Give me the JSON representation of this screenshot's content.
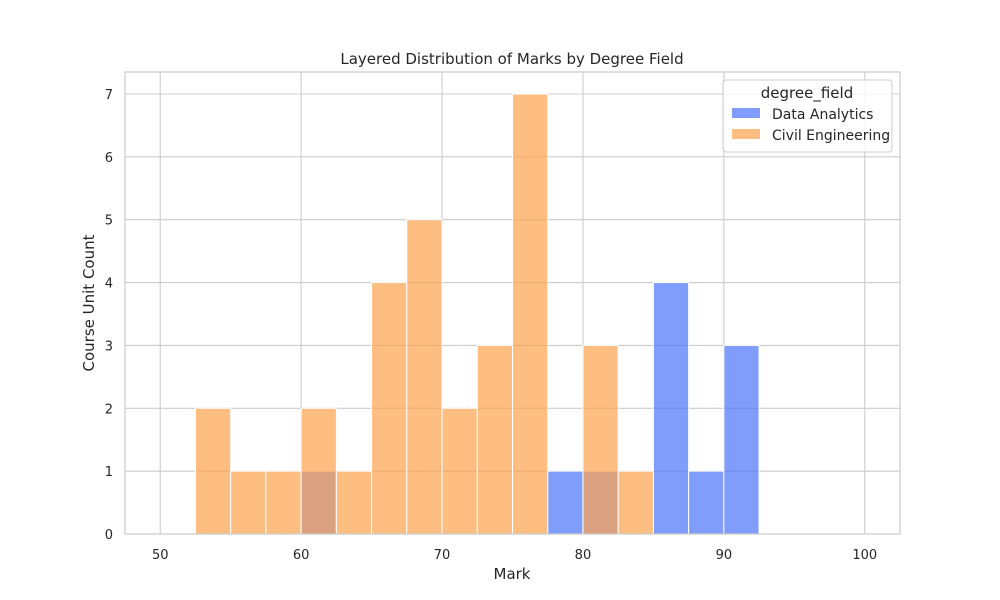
{
  "chart_data": {
    "type": "histogram",
    "title": "Layered Distribution of Marks by Degree Field",
    "xlabel": "Mark",
    "ylabel": "Course Unit Count",
    "xlim": [
      47.5,
      102.5
    ],
    "ylim": [
      0,
      7.35
    ],
    "xticks": [
      50,
      60,
      70,
      80,
      90,
      100
    ],
    "yticks": [
      0,
      1,
      2,
      3,
      4,
      5,
      6,
      7
    ],
    "grid": true,
    "bin_edges": [
      50,
      52.5,
      55,
      57.5,
      60,
      62.5,
      65,
      67.5,
      70,
      72.5,
      75,
      77.5,
      80,
      82.5,
      85,
      87.5,
      90,
      92.5,
      95,
      97.5,
      100
    ],
    "legend": {
      "title": "degree_field",
      "position": "top-right"
    },
    "series": [
      {
        "name": "Data Analytics",
        "color": "#4a73fa",
        "opacity": 0.7,
        "counts": [
          0,
          0,
          0,
          0,
          1,
          0,
          0,
          0,
          0,
          0,
          0,
          1,
          1,
          0,
          4,
          1,
          3,
          0,
          0,
          0
        ]
      },
      {
        "name": "Civil Engineering",
        "color": "#ffa24c",
        "opacity": 0.7,
        "counts": [
          0,
          2,
          1,
          1,
          2,
          1,
          4,
          5,
          2,
          3,
          7,
          0,
          3,
          1,
          0,
          0,
          0,
          0,
          0,
          0
        ]
      }
    ]
  }
}
